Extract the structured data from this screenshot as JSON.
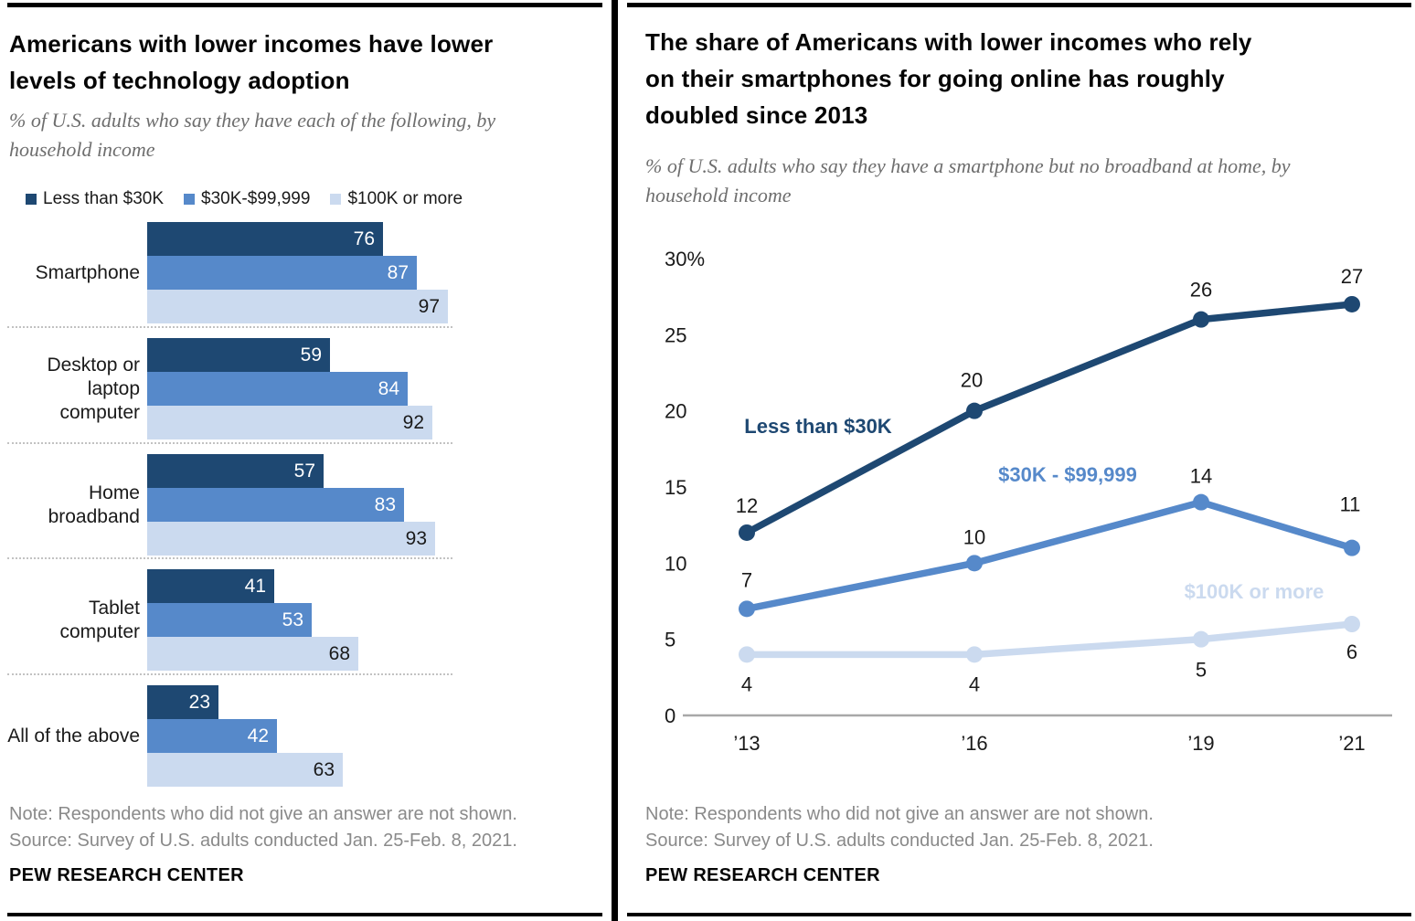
{
  "footer": {
    "note": "Note: Respondents who did not give an answer are not shown.",
    "source": "Source: Survey of U.S. adults conducted Jan. 25-Feb. 8, 2021.",
    "branding": "PEW RESEARCH CENTER"
  },
  "colors": {
    "dark_blue": "#1E4872",
    "medium_blue": "#5689CA",
    "light_blue": "#CBDAEF",
    "axis_gray": "#a8a8a8",
    "label_dark": "#1a1a1a",
    "label_white": "#ffffff"
  },
  "chart_data": [
    {
      "type": "bar",
      "orientation": "horizontal",
      "title": "Americans with lower incomes have lower levels of technology adoption",
      "subtitle": "% of U.S. adults who say they have each of the following, by household income",
      "legend": [
        "Less than $30K",
        "$30K-$99,999",
        "$100K or more"
      ],
      "categories": [
        "Smartphone",
        "Desktop or laptop computer",
        "Home broadband",
        "Tablet computer",
        "All of the above"
      ],
      "series": [
        {
          "name": "Less than $30K",
          "values": [
            76,
            59,
            57,
            41,
            23
          ]
        },
        {
          "name": "$30K-$99,999",
          "values": [
            87,
            84,
            83,
            53,
            42
          ]
        },
        {
          "name": "$100K or more",
          "values": [
            97,
            92,
            93,
            68,
            63
          ]
        }
      ],
      "xlim": [
        0,
        100
      ],
      "grid": false
    },
    {
      "type": "line",
      "title": "The share of Americans with lower incomes who rely on their smartphones for going online has roughly doubled since 2013",
      "subtitle": "% of U.S. adults who say they have a smartphone but no broadband at home, by household income",
      "x": [
        "’13",
        "’16",
        "’19",
        "’21"
      ],
      "x_years": [
        2013,
        2016,
        2019,
        2021
      ],
      "series": [
        {
          "name": "Less than $30K",
          "values": [
            12,
            20,
            26,
            27
          ]
        },
        {
          "name": "$30K - $99,999",
          "values": [
            7,
            10,
            14,
            11
          ]
        },
        {
          "name": "$100K or more",
          "values": [
            4,
            4,
            5,
            6
          ]
        }
      ],
      "ylim": [
        0,
        30
      ],
      "yticks": [
        {
          "label": "30%",
          "value": 30
        },
        {
          "label": "25",
          "value": 25
        },
        {
          "label": "20",
          "value": 20
        },
        {
          "label": "15",
          "value": 15
        },
        {
          "label": "10",
          "value": 10
        },
        {
          "label": "5",
          "value": 5
        },
        {
          "label": "0",
          "value": 0
        }
      ],
      "legend_position": "inline-labels",
      "grid": false
    }
  ]
}
